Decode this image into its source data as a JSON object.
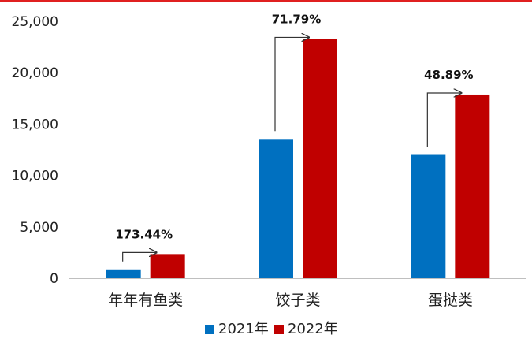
{
  "chart_data": {
    "type": "bar",
    "categories": [
      "年年有鱼类",
      "饺子类",
      "蛋挞类"
    ],
    "series": [
      {
        "name": "2021年",
        "color": "#0070c0",
        "values": [
          860,
          13550,
          12000
        ]
      },
      {
        "name": "2022年",
        "color": "#c00000",
        "values": [
          2350,
          23280,
          17870
        ]
      }
    ],
    "growth_labels": [
      "173.44%",
      "71.79%",
      "48.89%"
    ],
    "yticks": [
      "0",
      "5,000",
      "10,000",
      "15,000",
      "20,000",
      "25,000"
    ],
    "ylim": [
      0,
      25000
    ],
    "legend_position": "bottom",
    "grid": false
  },
  "colors": {
    "top_rule": "#e02020"
  }
}
